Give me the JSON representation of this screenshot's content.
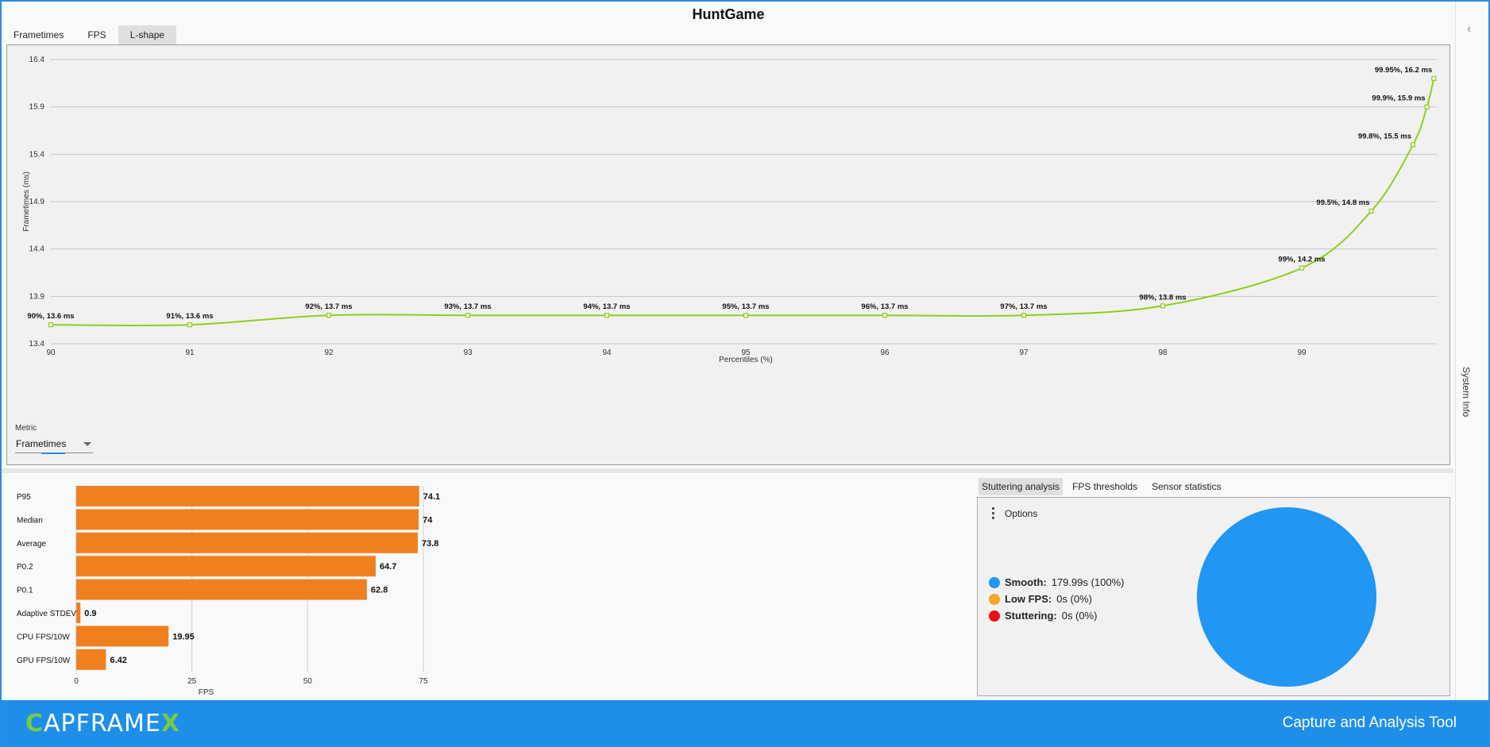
{
  "app": {
    "title": "HuntGame"
  },
  "tabs": [
    {
      "label": "Frametimes",
      "active": false
    },
    {
      "label": "FPS",
      "active": false
    },
    {
      "label": "L-shape",
      "active": true
    }
  ],
  "metric": {
    "label": "Metric",
    "value": "Frametimes"
  },
  "side_panel": {
    "label": "System Info",
    "icon": "chevron-left-icon"
  },
  "stats_tabs": [
    {
      "label": "Stuttering analysis",
      "active": true
    },
    {
      "label": "FPS thresholds",
      "active": false
    },
    {
      "label": "Sensor statistics",
      "active": false
    }
  ],
  "stuttering": {
    "options_label": "Options",
    "legend": [
      {
        "label": "Smooth:",
        "value": "179.99s (100%)",
        "color": "#2196f3"
      },
      {
        "label": "Low FPS:",
        "value": "0s (0%)",
        "color": "#f5a623"
      },
      {
        "label": "Stuttering:",
        "value": "0s (0%)",
        "color": "#ee1111"
      }
    ],
    "pie_fraction_smooth": 1.0
  },
  "footer": {
    "logo_c": "C",
    "logo_mid": "APFRAME",
    "logo_x": "X",
    "tagline": "Capture and Analysis Tool"
  },
  "chart_data": [
    {
      "type": "line",
      "xlabel": "Percentiles (%)",
      "ylabel": "Frametimes (ms)",
      "xlim": [
        90,
        100
      ],
      "ylim": [
        13.4,
        16.4
      ],
      "xticks": [
        90,
        91,
        92,
        93,
        94,
        95,
        96,
        97,
        98,
        99
      ],
      "yticks": [
        13.4,
        13.9,
        14.4,
        14.9,
        15.4,
        15.9,
        16.4
      ],
      "grid": true,
      "color": "#8fcf1c",
      "points": [
        {
          "x": 90,
          "y": 13.6,
          "label": "90%, 13.6 ms"
        },
        {
          "x": 91,
          "y": 13.6,
          "label": "91%, 13.6 ms"
        },
        {
          "x": 92,
          "y": 13.7,
          "label": "92%, 13.7 ms"
        },
        {
          "x": 93,
          "y": 13.7,
          "label": "93%, 13.7 ms"
        },
        {
          "x": 94,
          "y": 13.7,
          "label": "94%, 13.7 ms"
        },
        {
          "x": 95,
          "y": 13.7,
          "label": "95%, 13.7 ms"
        },
        {
          "x": 96,
          "y": 13.7,
          "label": "96%, 13.7 ms"
        },
        {
          "x": 97,
          "y": 13.7,
          "label": "97%, 13.7 ms"
        },
        {
          "x": 98,
          "y": 13.8,
          "label": "98%, 13.8 ms"
        },
        {
          "x": 99,
          "y": 14.2,
          "label": "99%, 14.2 ms"
        },
        {
          "x": 99.5,
          "y": 14.8,
          "label": "99.5%, 14.8 ms"
        },
        {
          "x": 99.8,
          "y": 15.5,
          "label": "99.8%, 15.5 ms"
        },
        {
          "x": 99.9,
          "y": 15.9,
          "label": "99.9%, 15.9 ms"
        },
        {
          "x": 99.95,
          "y": 16.2,
          "label": "99.95%, 16.2 ms"
        }
      ]
    },
    {
      "type": "bar",
      "orientation": "horizontal",
      "xlabel": "FPS",
      "xlim": [
        0,
        75
      ],
      "xticks": [
        0,
        25,
        50,
        75
      ],
      "color": "#f07f20",
      "categories": [
        "P95",
        "Median",
        "Average",
        "P0.2",
        "P0.1",
        "Adaptive STDEV",
        "CPU FPS/10W",
        "GPU FPS/10W"
      ],
      "values": [
        74.1,
        74,
        73.8,
        64.7,
        62.8,
        0.9,
        19.95,
        6.42
      ],
      "value_labels": [
        "74.1",
        "74",
        "73.8",
        "64.7",
        "62.8",
        "0.9",
        "19.95",
        "6.42"
      ]
    }
  ]
}
